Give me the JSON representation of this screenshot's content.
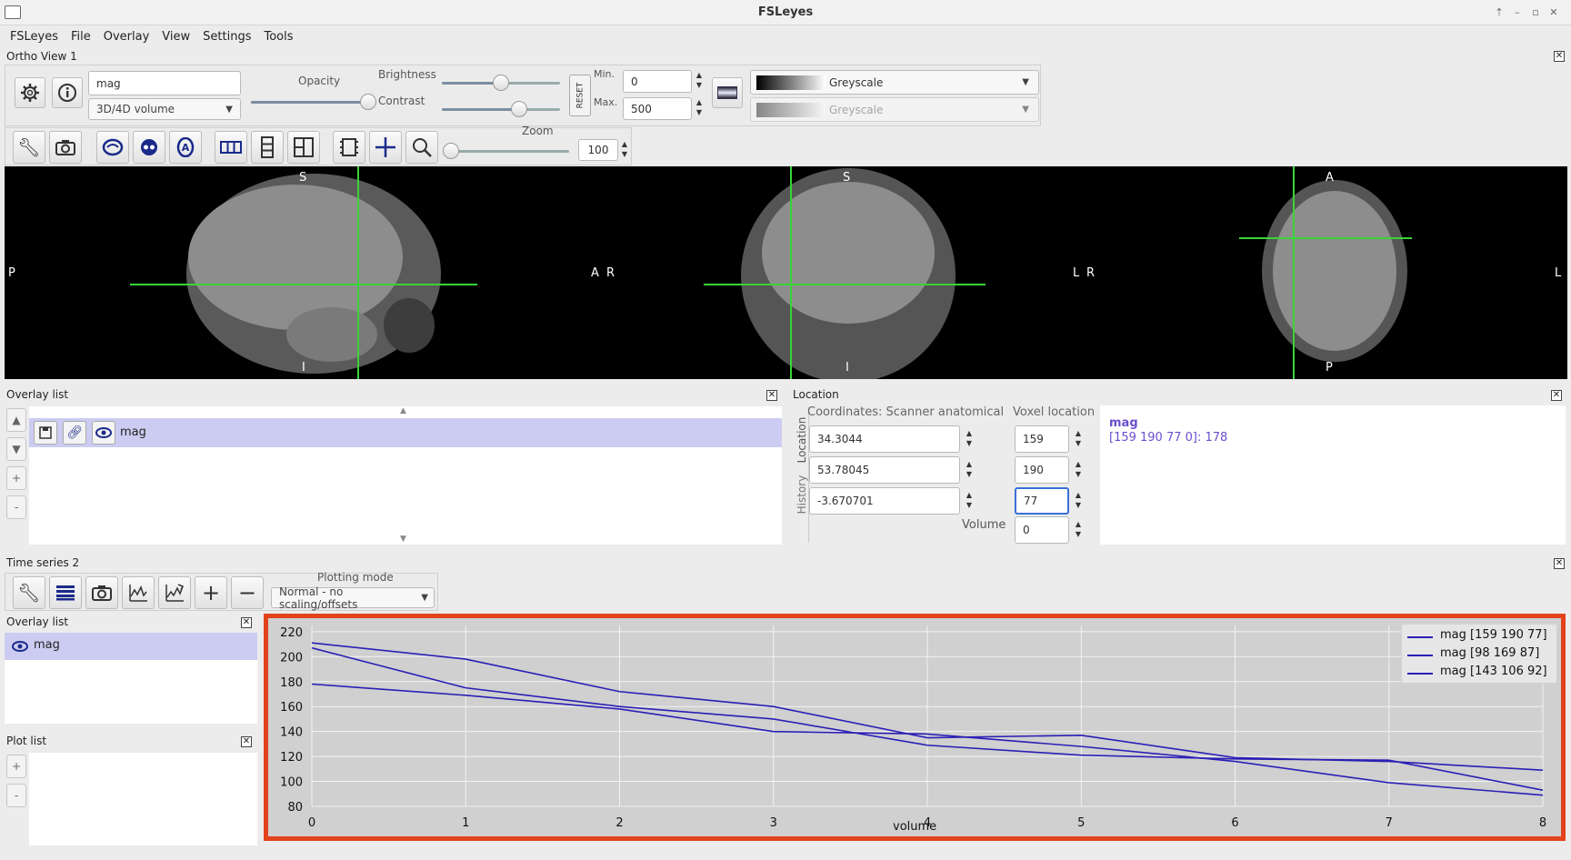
{
  "window": {
    "title": "FSLeyes"
  },
  "menu": [
    "FSLeyes",
    "File",
    "Overlay",
    "View",
    "Settings",
    "Tools"
  ],
  "ortho": {
    "panel_title": "Ortho View 1",
    "overlay_name": "mag",
    "overlay_type": "3D/4D volume",
    "opacity_label": "Opacity",
    "brightness_label": "Brightness",
    "contrast_label": "Contrast",
    "opacity": 0.99,
    "brightness": 0.5,
    "contrast": 0.65,
    "reset_label": "RESET",
    "min_label": "Min.",
    "max_label": "Max.",
    "min_value": "0",
    "max_value": "500",
    "colormap": "Greyscale",
    "colormap2": "Greyscale",
    "zoom_label": "Zoom",
    "zoom_value": "100",
    "zoom_level": 0.0,
    "labels": {
      "sagittal": {
        "top": "S",
        "bottom": "I",
        "left": "P",
        "right": "A"
      },
      "coronal": {
        "top": "S",
        "bottom": "I",
        "left": "R",
        "right": "L"
      },
      "axial": {
        "top": "A",
        "bottom": "P",
        "left": "R",
        "right": "L"
      }
    }
  },
  "overlay_list": {
    "title": "Overlay list",
    "items": [
      {
        "name": "mag"
      }
    ]
  },
  "location": {
    "title": "Location",
    "coords_header": "Coordinates: Scanner anatomical",
    "voxel_header": "Voxel location",
    "tab_location": "Location",
    "tab_history": "History",
    "coords": [
      "34.3044",
      "53.78045",
      "-3.670701"
    ],
    "voxels": [
      "159",
      "190",
      "77"
    ],
    "volume_label": "Volume",
    "volume_value": "0",
    "info_name": "mag",
    "info_value": "[159 190 77 0]: 178"
  },
  "timeseries": {
    "title": "Time series 2",
    "plotting_mode_label": "Plotting mode",
    "plotting_mode": "Normal - no scaling/offsets",
    "overlay_list_title": "Overlay list",
    "overlay_item": "mag",
    "plot_list_title": "Plot list"
  },
  "colors": {
    "series": "#2a1fb5",
    "plot_bg": "#d0d0d0",
    "highlight": "#e2431b",
    "crosshair": "#39d339"
  },
  "chart_data": {
    "type": "line",
    "xlabel": "volume",
    "ylabel": "",
    "xlim": [
      0,
      8
    ],
    "ylim": [
      80,
      225
    ],
    "xticks": [
      "0",
      "1",
      "2",
      "3",
      "4",
      "5",
      "6",
      "7",
      "8"
    ],
    "yticks": [
      "80",
      "100",
      "120",
      "140",
      "160",
      "180",
      "200",
      "220"
    ],
    "grid": true,
    "legend_position": "top-right",
    "series": [
      {
        "name": "mag [159 190 77]",
        "x": [
          0,
          1,
          2,
          3,
          4,
          5,
          6,
          7,
          8
        ],
        "y": [
          178,
          169,
          158,
          140,
          138,
          128,
          116,
          99,
          89
        ]
      },
      {
        "name": "mag [98 169 87]",
        "x": [
          0,
          1,
          2,
          3,
          4,
          5,
          6,
          7,
          8
        ],
        "y": [
          207,
          175,
          160,
          150,
          129,
          121,
          118,
          117,
          93
        ]
      },
      {
        "name": "mag [143 106 92]",
        "x": [
          0,
          1,
          2,
          3,
          4,
          5,
          6,
          7,
          8
        ],
        "y": [
          211,
          198,
          172,
          160,
          135,
          137,
          119,
          116,
          109
        ]
      }
    ]
  }
}
